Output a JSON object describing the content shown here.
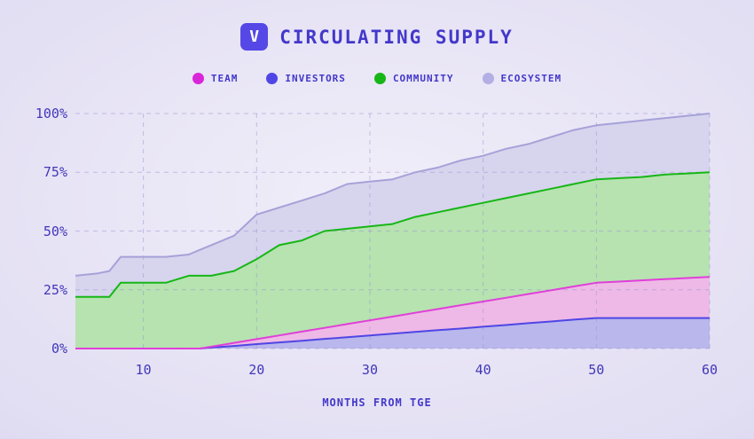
{
  "header": {
    "logo_letter": "V",
    "title": "CIRCULATING SUPPLY"
  },
  "legend": [
    {
      "label": "TEAM",
      "color": "#d926d9"
    },
    {
      "label": "INVESTORS",
      "color": "#4f46e5"
    },
    {
      "label": "COMMUNITY",
      "color": "#17b617"
    },
    {
      "label": "ECOSYSTEM",
      "color": "#b3aee4"
    }
  ],
  "chart_data": {
    "type": "area",
    "stacked": true,
    "title": "CIRCULATING SUPPLY",
    "xlabel": "MONTHS FROM TGE",
    "ylabel": "",
    "grid": "dashed",
    "legend_position": "top",
    "x_range": [
      4,
      60
    ],
    "y_range": [
      0,
      100
    ],
    "x_ticks": [
      {
        "v": 10,
        "label": "10"
      },
      {
        "v": 20,
        "label": "20"
      },
      {
        "v": 30,
        "label": "30"
      },
      {
        "v": 40,
        "label": "40"
      },
      {
        "v": 50,
        "label": "50"
      },
      {
        "v": 60,
        "label": "60"
      }
    ],
    "y_ticks": [
      {
        "v": 0,
        "label": "0%"
      },
      {
        "v": 25,
        "label": "25%"
      },
      {
        "v": 50,
        "label": "50%"
      },
      {
        "v": 75,
        "label": "75%"
      },
      {
        "v": 100,
        "label": "100%"
      }
    ],
    "x": [
      4,
      6,
      7,
      8,
      10,
      12,
      14,
      15,
      16,
      18,
      20,
      22,
      24,
      26,
      28,
      30,
      32,
      34,
      36,
      38,
      40,
      42,
      44,
      46,
      48,
      50,
      52,
      54,
      56,
      58,
      60
    ],
    "series": [
      {
        "name": "INVESTORS",
        "color": "#4f46e5",
        "fill": "#b9b7ec",
        "cumulative_percent": [
          0,
          0,
          0,
          0,
          0,
          0,
          0,
          0,
          0.4,
          1.1,
          1.9,
          2.6,
          3.3,
          4.1,
          4.8,
          5.6,
          6.3,
          7.1,
          7.8,
          8.5,
          9.3,
          10,
          10.8,
          11.5,
          12.3,
          13,
          13,
          13,
          13,
          13,
          13
        ]
      },
      {
        "name": "TEAM",
        "color": "#e03fd8",
        "fill": "#eeb9e6",
        "cumulative_percent": [
          0,
          0,
          0,
          0,
          0,
          0,
          0,
          0,
          0.8,
          2.4,
          4,
          5.6,
          7.2,
          8.8,
          10.4,
          12,
          13.6,
          15.2,
          16.8,
          18.4,
          20,
          21.6,
          23.2,
          24.8,
          26.4,
          28,
          28.5,
          29,
          29.5,
          30,
          30.5
        ]
      },
      {
        "name": "COMMUNITY",
        "color": "#17b617",
        "fill": "#b6e3b0",
        "cumulative_percent": [
          22,
          22,
          22,
          28,
          28,
          28,
          31,
          31,
          31,
          33,
          38,
          44,
          46,
          50,
          51,
          52,
          53,
          56,
          58,
          60,
          62,
          64,
          66,
          68,
          70,
          72,
          72.5,
          73,
          74,
          74.5,
          75
        ]
      },
      {
        "name": "ECOSYSTEM",
        "color": "#a6a2d8",
        "fill": "#d7d4ee",
        "cumulative_percent": [
          31,
          32,
          33,
          39,
          39,
          39,
          40,
          42,
          44,
          48,
          57,
          60,
          63,
          66,
          70,
          71,
          72,
          75,
          77,
          80,
          82,
          85,
          87,
          90,
          93,
          95,
          96,
          97,
          98,
          99,
          100
        ]
      }
    ]
  }
}
